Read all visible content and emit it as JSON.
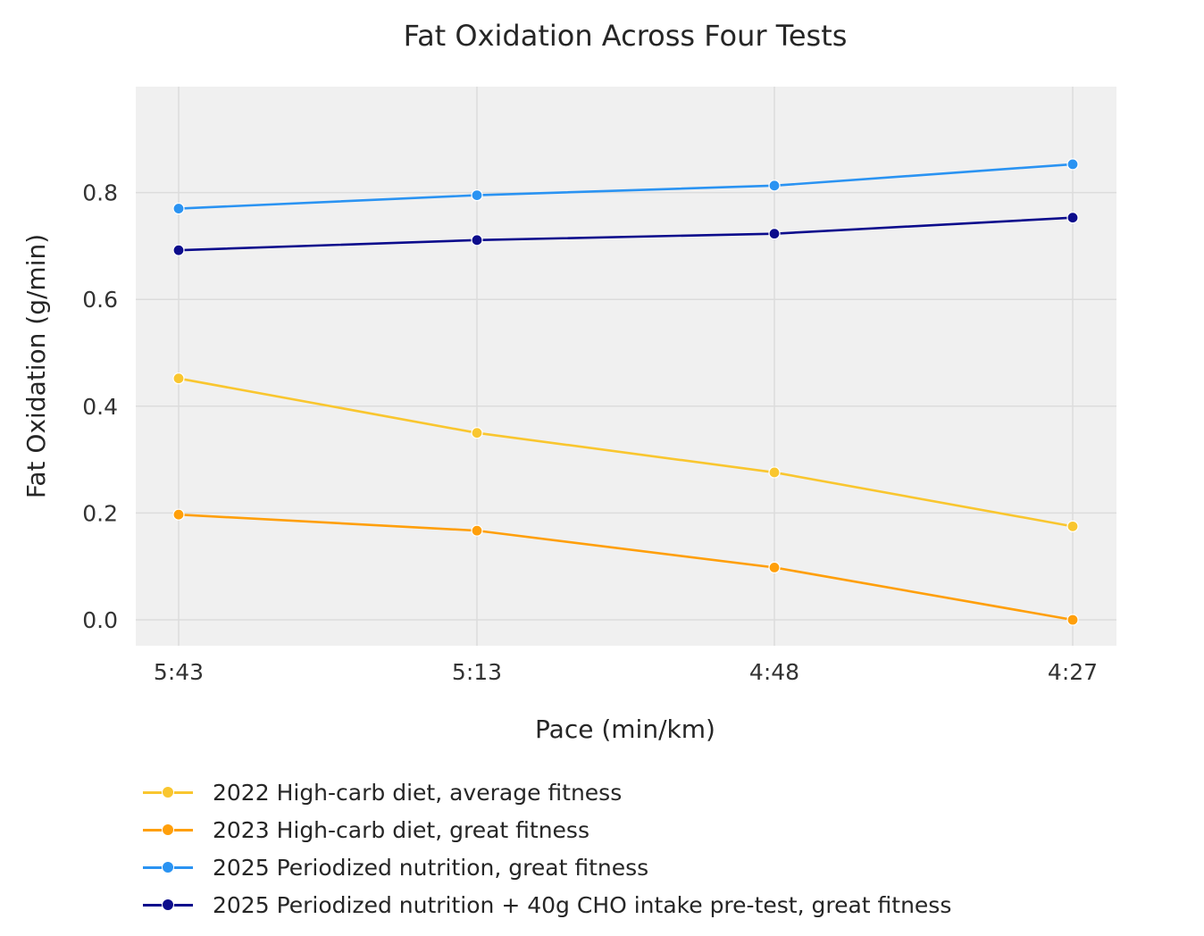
{
  "chart_data": {
    "type": "line",
    "title": "Fat Oxidation Across Four Tests",
    "xlabel": "Pace (min/km)",
    "ylabel": "Fat Oxidation (g/min)",
    "categories": [
      "5:43",
      "5:13",
      "4:48",
      "4:27"
    ],
    "ylim": [
      -0.05,
      1.0
    ],
    "yticks": [
      "0.0",
      "0.2",
      "0.4",
      "0.6",
      "0.8"
    ],
    "grid": true,
    "legend_placement": "bottom-left, below plot",
    "series": [
      {
        "name": "2022 High-carb diet, average fitness",
        "color": "#F9C62F",
        "values": [
          0.452,
          0.35,
          0.276,
          0.175
        ]
      },
      {
        "name": "2023 High-carb diet, great fitness",
        "color": "#FF9F0A",
        "values": [
          0.197,
          0.167,
          0.098,
          0.0
        ]
      },
      {
        "name": "2025 Periodized nutrition, great fitness",
        "color": "#2A93F2",
        "values": [
          0.77,
          0.795,
          0.813,
          0.853
        ]
      },
      {
        "name": "2025 Periodized nutrition + 40g CHO intake pre-test, great fitness",
        "color": "#0C0C8C",
        "values": [
          0.692,
          0.711,
          0.723,
          0.753
        ]
      }
    ]
  }
}
